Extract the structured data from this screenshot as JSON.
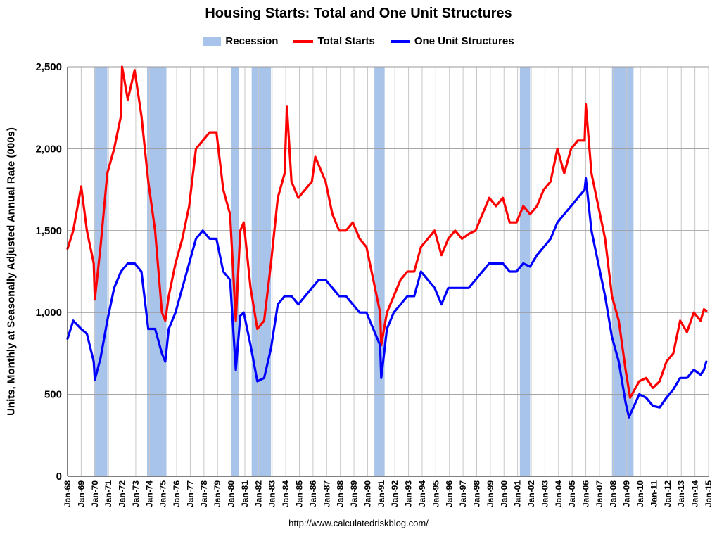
{
  "chart_data": {
    "type": "line",
    "title": "Housing Starts: Total and One Unit Structures",
    "ylabel": "Units, Monthly at Seasonally Adjusted Annual Rate (000s)",
    "xlabel": "",
    "ylim": [
      0,
      2500
    ],
    "yticks": [
      0,
      500,
      1000,
      1500,
      2000,
      2500
    ],
    "ytick_labels": [
      "0",
      "500",
      "1,000",
      "1,500",
      "2,000",
      "2,500"
    ],
    "xlim": [
      "1968-01",
      "2015-01"
    ],
    "x_tick_labels": [
      "Jan-68",
      "Jan-69",
      "Jan-70",
      "Jan-71",
      "Jan-72",
      "Jan-73",
      "Jan-74",
      "Jan-75",
      "Jan-76",
      "Jan-77",
      "Jan-78",
      "Jan-79",
      "Jan-80",
      "Jan-81",
      "Jan-82",
      "Jan-83",
      "Jan-84",
      "Jan-85",
      "Jan-86",
      "Jan-87",
      "Jan-88",
      "Jan-89",
      "Jan-90",
      "Jan-91",
      "Jan-92",
      "Jan-93",
      "Jan-94",
      "Jan-95",
      "Jan-96",
      "Jan-97",
      "Jan-98",
      "Jan-99",
      "Jan-00",
      "Jan-01",
      "Jan-02",
      "Jan-03",
      "Jan-04",
      "Jan-05",
      "Jan-06",
      "Jan-07",
      "Jan-08",
      "Jan-09",
      "Jan-10",
      "Jan-11",
      "Jan-12",
      "Jan-13",
      "Jan-14",
      "Jan-15"
    ],
    "grid": "vertical-and-horizontal",
    "legend_position": "top-center",
    "recessions": [
      {
        "start": "1969-12",
        "end": "1970-11"
      },
      {
        "start": "1973-11",
        "end": "1975-03"
      },
      {
        "start": "1980-01",
        "end": "1980-07"
      },
      {
        "start": "1981-07",
        "end": "1982-11"
      },
      {
        "start": "1990-07",
        "end": "1991-03"
      },
      {
        "start": "2001-03",
        "end": "2001-11"
      },
      {
        "start": "2007-12",
        "end": "2009-06"
      }
    ],
    "series": [
      {
        "name": "Total Starts",
        "color": "#ff0000",
        "points": [
          [
            "1968-01",
            1390
          ],
          [
            "1968-06",
            1500
          ],
          [
            "1969-01",
            1770
          ],
          [
            "1969-06",
            1500
          ],
          [
            "1969-12",
            1300
          ],
          [
            "1970-01",
            1080
          ],
          [
            "1970-06",
            1400
          ],
          [
            "1970-12",
            1850
          ],
          [
            "1971-06",
            2000
          ],
          [
            "1971-12",
            2200
          ],
          [
            "1972-01",
            2500
          ],
          [
            "1972-06",
            2300
          ],
          [
            "1972-12",
            2480
          ],
          [
            "1973-06",
            2200
          ],
          [
            "1973-12",
            1800
          ],
          [
            "1974-06",
            1500
          ],
          [
            "1974-12",
            1000
          ],
          [
            "1975-03",
            950
          ],
          [
            "1975-06",
            1100
          ],
          [
            "1975-12",
            1300
          ],
          [
            "1976-06",
            1450
          ],
          [
            "1976-12",
            1650
          ],
          [
            "1977-06",
            2000
          ],
          [
            "1977-12",
            2050
          ],
          [
            "1978-06",
            2100
          ],
          [
            "1978-12",
            2100
          ],
          [
            "1979-06",
            1750
          ],
          [
            "1979-12",
            1600
          ],
          [
            "1980-05",
            950
          ],
          [
            "1980-09",
            1500
          ],
          [
            "1980-12",
            1550
          ],
          [
            "1981-06",
            1150
          ],
          [
            "1981-12",
            900
          ],
          [
            "1982-06",
            950
          ],
          [
            "1982-12",
            1300
          ],
          [
            "1983-06",
            1700
          ],
          [
            "1983-12",
            1850
          ],
          [
            "1984-02",
            2260
          ],
          [
            "1984-06",
            1800
          ],
          [
            "1984-12",
            1700
          ],
          [
            "1985-06",
            1750
          ],
          [
            "1985-12",
            1800
          ],
          [
            "1986-03",
            1950
          ],
          [
            "1986-12",
            1800
          ],
          [
            "1987-06",
            1600
          ],
          [
            "1987-12",
            1500
          ],
          [
            "1988-06",
            1500
          ],
          [
            "1988-12",
            1550
          ],
          [
            "1989-06",
            1450
          ],
          [
            "1989-12",
            1400
          ],
          [
            "1990-06",
            1200
          ],
          [
            "1990-12",
            1000
          ],
          [
            "1991-01",
            800
          ],
          [
            "1991-06",
            1000
          ],
          [
            "1991-12",
            1100
          ],
          [
            "1992-06",
            1200
          ],
          [
            "1992-12",
            1250
          ],
          [
            "1993-06",
            1250
          ],
          [
            "1993-12",
            1400
          ],
          [
            "1994-06",
            1450
          ],
          [
            "1994-12",
            1500
          ],
          [
            "1995-06",
            1350
          ],
          [
            "1995-12",
            1450
          ],
          [
            "1996-06",
            1500
          ],
          [
            "1996-12",
            1450
          ],
          [
            "1997-06",
            1480
          ],
          [
            "1997-12",
            1500
          ],
          [
            "1998-06",
            1600
          ],
          [
            "1998-12",
            1700
          ],
          [
            "1999-06",
            1650
          ],
          [
            "1999-12",
            1700
          ],
          [
            "2000-06",
            1550
          ],
          [
            "2000-12",
            1550
          ],
          [
            "2001-06",
            1650
          ],
          [
            "2001-12",
            1600
          ],
          [
            "2002-06",
            1650
          ],
          [
            "2002-12",
            1750
          ],
          [
            "2003-06",
            1800
          ],
          [
            "2003-12",
            2000
          ],
          [
            "2004-06",
            1850
          ],
          [
            "2004-12",
            2000
          ],
          [
            "2005-06",
            2050
          ],
          [
            "2005-12",
            2050
          ],
          [
            "2006-01",
            2270
          ],
          [
            "2006-06",
            1850
          ],
          [
            "2006-12",
            1650
          ],
          [
            "2007-06",
            1450
          ],
          [
            "2007-12",
            1100
          ],
          [
            "2008-06",
            950
          ],
          [
            "2008-12",
            650
          ],
          [
            "2009-04",
            480
          ],
          [
            "2009-12",
            580
          ],
          [
            "2010-06",
            600
          ],
          [
            "2010-12",
            540
          ],
          [
            "2011-06",
            580
          ],
          [
            "2011-12",
            700
          ],
          [
            "2012-06",
            750
          ],
          [
            "2012-12",
            950
          ],
          [
            "2013-06",
            880
          ],
          [
            "2013-12",
            1000
          ],
          [
            "2014-06",
            950
          ],
          [
            "2014-09",
            1020
          ],
          [
            "2014-11",
            1010
          ]
        ]
      },
      {
        "name": "One Unit Structures",
        "color": "#0000ff",
        "points": [
          [
            "1968-01",
            840
          ],
          [
            "1968-06",
            950
          ],
          [
            "1969-01",
            900
          ],
          [
            "1969-06",
            870
          ],
          [
            "1969-12",
            700
          ],
          [
            "1970-01",
            590
          ],
          [
            "1970-06",
            720
          ],
          [
            "1970-12",
            950
          ],
          [
            "1971-06",
            1150
          ],
          [
            "1971-12",
            1250
          ],
          [
            "1972-06",
            1300
          ],
          [
            "1972-12",
            1300
          ],
          [
            "1973-06",
            1250
          ],
          [
            "1973-12",
            900
          ],
          [
            "1974-06",
            900
          ],
          [
            "1974-12",
            750
          ],
          [
            "1975-03",
            700
          ],
          [
            "1975-06",
            900
          ],
          [
            "1975-12",
            1000
          ],
          [
            "1976-06",
            1150
          ],
          [
            "1976-12",
            1300
          ],
          [
            "1977-06",
            1450
          ],
          [
            "1977-12",
            1500
          ],
          [
            "1978-06",
            1450
          ],
          [
            "1978-12",
            1450
          ],
          [
            "1979-06",
            1250
          ],
          [
            "1979-12",
            1200
          ],
          [
            "1980-05",
            650
          ],
          [
            "1980-09",
            980
          ],
          [
            "1980-12",
            1000
          ],
          [
            "1981-06",
            800
          ],
          [
            "1981-12",
            580
          ],
          [
            "1982-06",
            600
          ],
          [
            "1982-12",
            780
          ],
          [
            "1983-06",
            1050
          ],
          [
            "1983-12",
            1100
          ],
          [
            "1984-06",
            1100
          ],
          [
            "1984-12",
            1050
          ],
          [
            "1985-06",
            1100
          ],
          [
            "1985-12",
            1150
          ],
          [
            "1986-06",
            1200
          ],
          [
            "1986-12",
            1200
          ],
          [
            "1987-06",
            1150
          ],
          [
            "1987-12",
            1100
          ],
          [
            "1988-06",
            1100
          ],
          [
            "1988-12",
            1050
          ],
          [
            "1989-06",
            1000
          ],
          [
            "1989-12",
            1000
          ],
          [
            "1990-06",
            900
          ],
          [
            "1990-12",
            800
          ],
          [
            "1991-01",
            600
          ],
          [
            "1991-06",
            900
          ],
          [
            "1991-12",
            1000
          ],
          [
            "1992-06",
            1050
          ],
          [
            "1992-12",
            1100
          ],
          [
            "1993-06",
            1100
          ],
          [
            "1993-12",
            1250
          ],
          [
            "1994-06",
            1200
          ],
          [
            "1994-12",
            1150
          ],
          [
            "1995-06",
            1050
          ],
          [
            "1995-12",
            1150
          ],
          [
            "1996-06",
            1150
          ],
          [
            "1996-12",
            1150
          ],
          [
            "1997-06",
            1150
          ],
          [
            "1997-12",
            1200
          ],
          [
            "1998-06",
            1250
          ],
          [
            "1998-12",
            1300
          ],
          [
            "1999-06",
            1300
          ],
          [
            "1999-12",
            1300
          ],
          [
            "2000-06",
            1250
          ],
          [
            "2000-12",
            1250
          ],
          [
            "2001-06",
            1300
          ],
          [
            "2001-12",
            1280
          ],
          [
            "2002-06",
            1350
          ],
          [
            "2002-12",
            1400
          ],
          [
            "2003-06",
            1450
          ],
          [
            "2003-12",
            1550
          ],
          [
            "2004-06",
            1600
          ],
          [
            "2004-12",
            1650
          ],
          [
            "2005-06",
            1700
          ],
          [
            "2005-12",
            1750
          ],
          [
            "2006-01",
            1820
          ],
          [
            "2006-06",
            1500
          ],
          [
            "2006-12",
            1300
          ],
          [
            "2007-06",
            1100
          ],
          [
            "2007-12",
            850
          ],
          [
            "2008-06",
            700
          ],
          [
            "2008-12",
            450
          ],
          [
            "2009-03",
            360
          ],
          [
            "2009-12",
            500
          ],
          [
            "2010-06",
            480
          ],
          [
            "2010-12",
            430
          ],
          [
            "2011-06",
            420
          ],
          [
            "2011-12",
            480
          ],
          [
            "2012-06",
            530
          ],
          [
            "2012-12",
            600
          ],
          [
            "2013-06",
            600
          ],
          [
            "2013-12",
            650
          ],
          [
            "2014-06",
            620
          ],
          [
            "2014-09",
            650
          ],
          [
            "2014-11",
            700
          ]
        ]
      }
    ]
  },
  "legend": {
    "recession_label": "Recession",
    "recession_color": "#a9c4eb",
    "total_label": "Total Starts",
    "total_color": "#ff0000",
    "single_label": "One Unit Structures",
    "single_color": "#0000ff"
  },
  "source_url": "http://www.calculatedriskblog.com/"
}
